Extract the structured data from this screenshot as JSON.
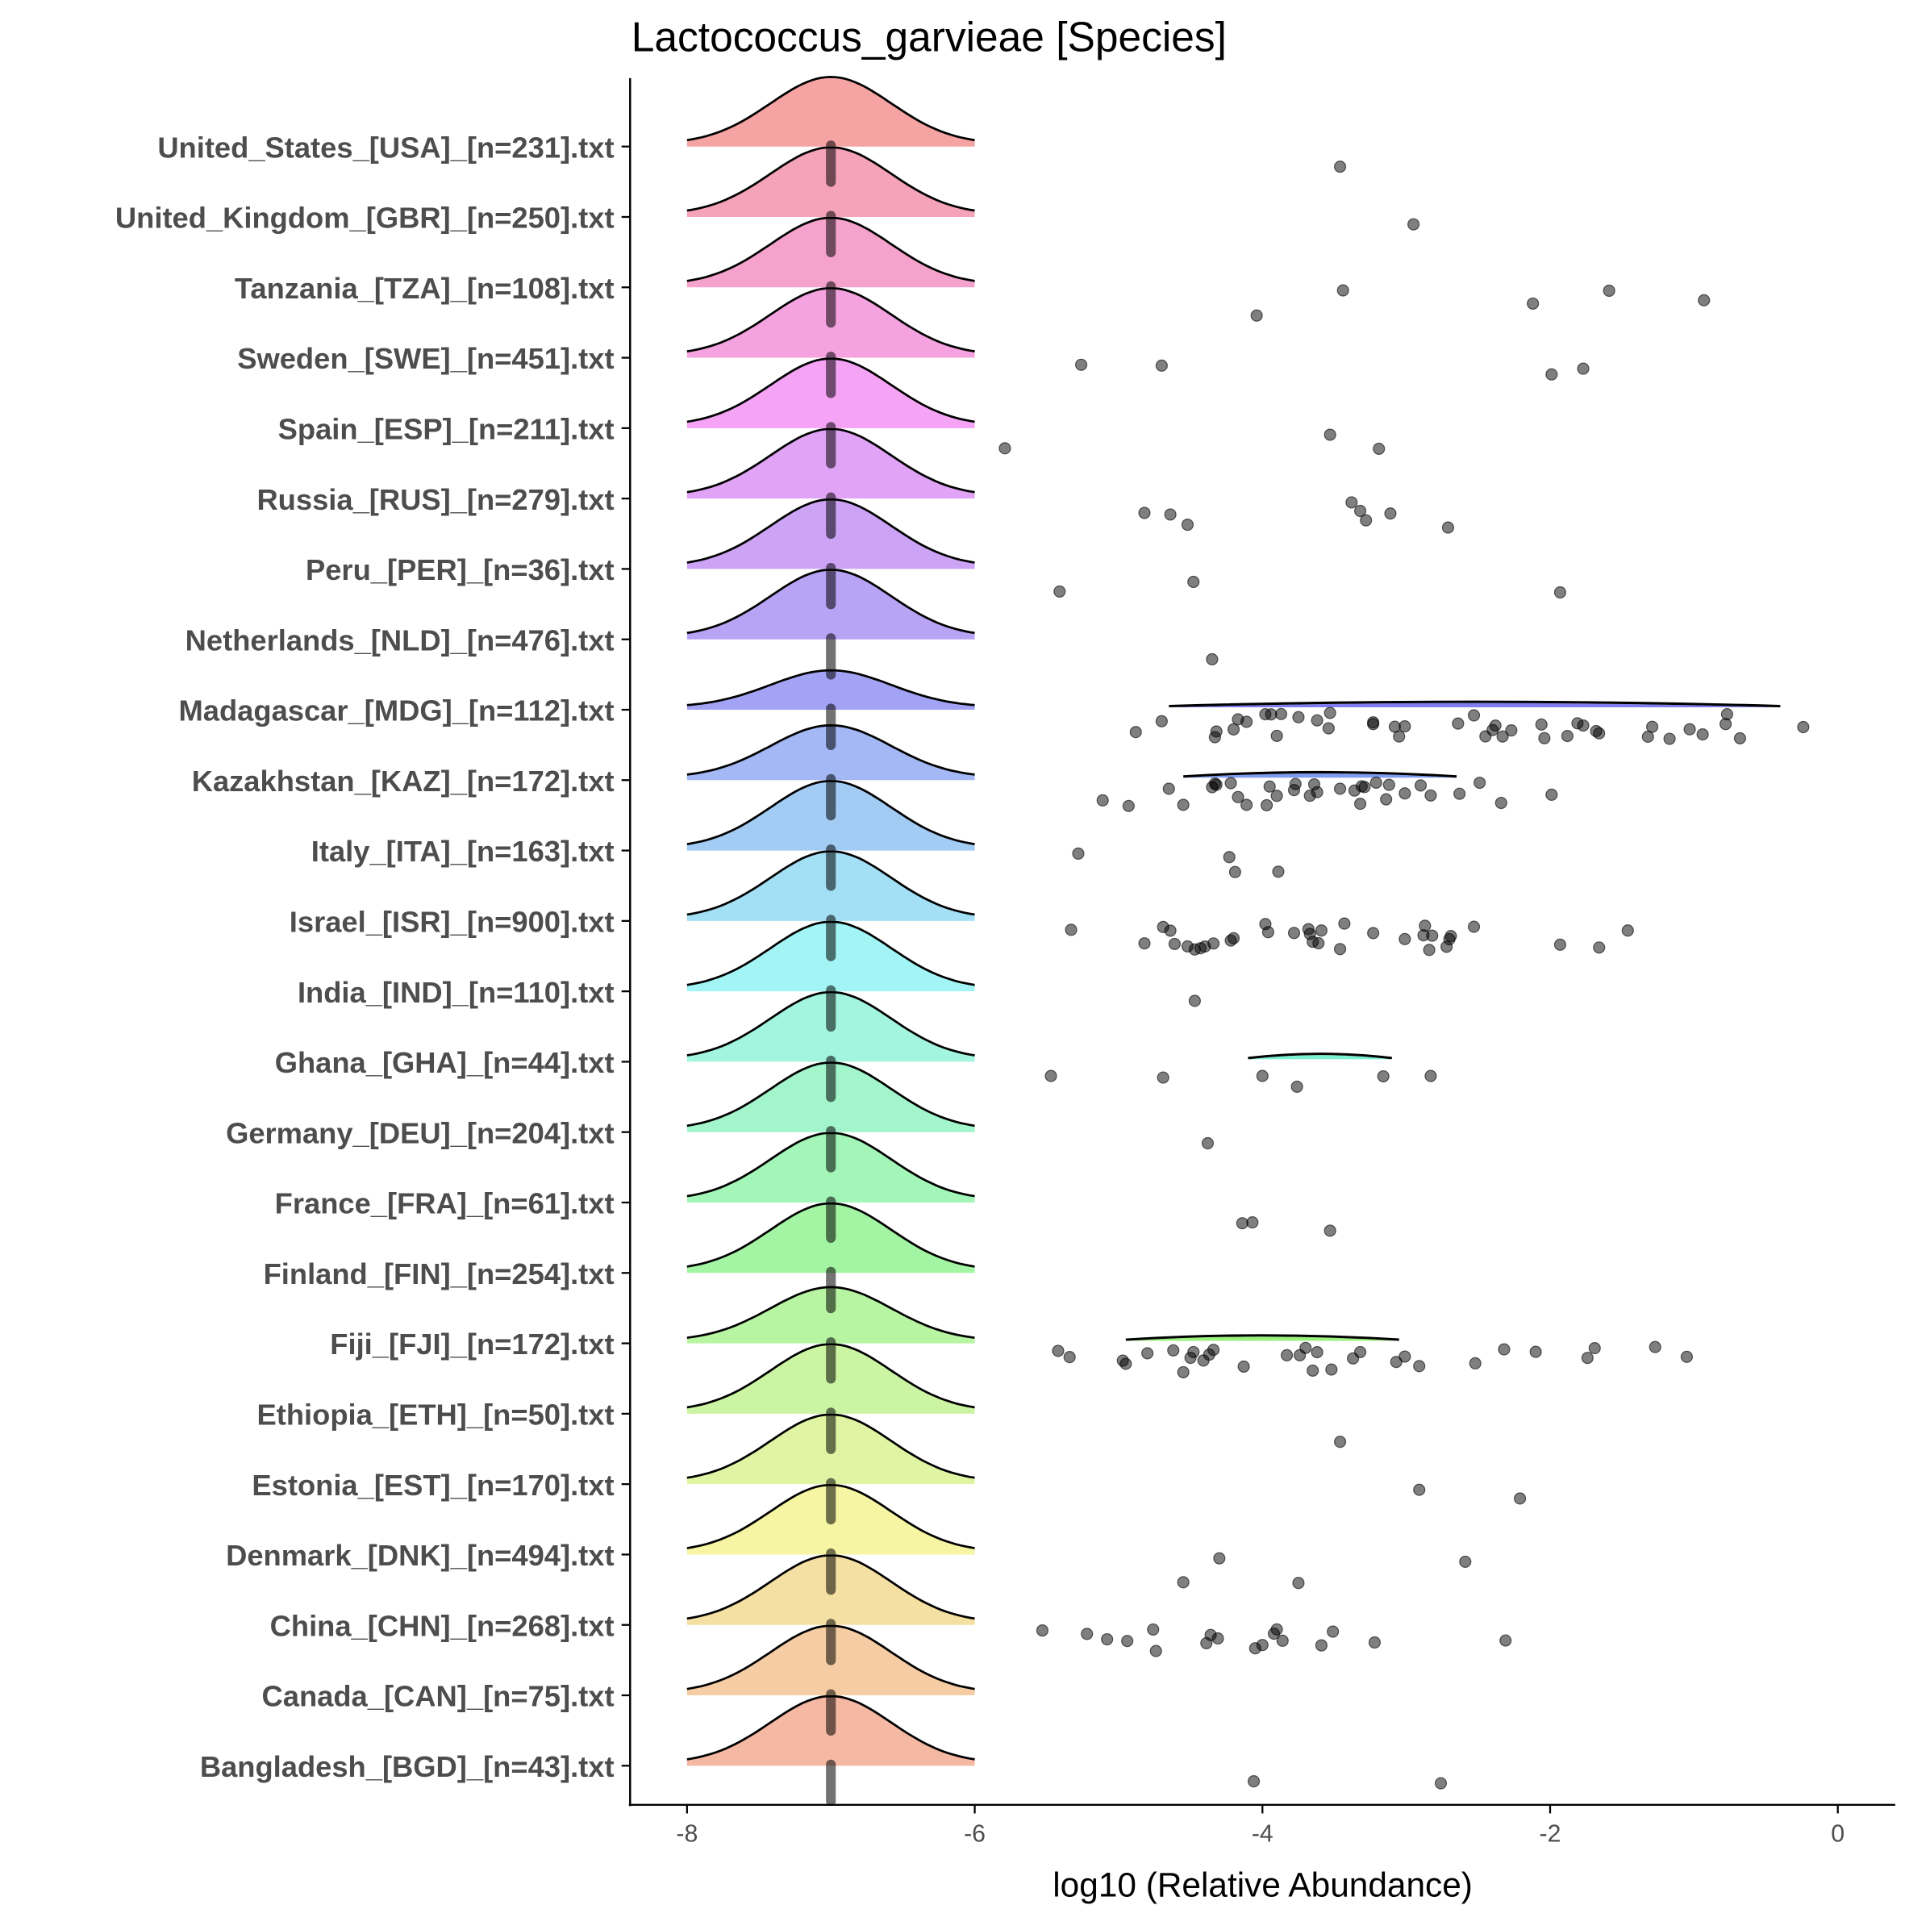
{
  "chart_data": {
    "type": "ridgeline",
    "title": "Lactococcus_garvieae [Species]",
    "xlabel": "log10 (Relative Abundance)",
    "ylabel": "",
    "xlim": [
      -8.4,
      0.4
    ],
    "xticks": [
      -8,
      -6,
      -4,
      -2,
      0
    ],
    "xtick_labels": [
      "-8",
      "-6",
      "-4",
      "-2",
      "0"
    ],
    "grid": false,
    "zero_value": -7,
    "point_color": "#000000",
    "rows": [
      {
        "label": "United_States_[USA]_[n=231].txt",
        "points": [
          -3.46
        ]
      },
      {
        "label": "United_Kingdom_[GBR]_[n=250].txt",
        "points": [
          -2.95
        ]
      },
      {
        "label": "Tanzania_[TZA]_[n=108].txt",
        "points": [
          -3.44,
          -4.04,
          -2.12,
          -1.59,
          -0.93
        ]
      },
      {
        "label": "Sweden_[SWE]_[n=451].txt",
        "points": [
          -5.26,
          -4.7,
          -1.99,
          -1.77
        ]
      },
      {
        "label": "Spain_[ESP]_[n=211].txt",
        "points": [
          -5.79,
          -3.53,
          -3.19
        ]
      },
      {
        "label": "Russia_[RUS]_[n=279].txt",
        "points": [
          -4.64,
          -4.82,
          -4.52,
          -3.28,
          -3.38,
          -3.32,
          -3.11,
          -2.71
        ]
      },
      {
        "label": "Peru_[PER]_[n=36].txt",
        "points": [
          -4.48,
          -5.41,
          -1.93
        ]
      },
      {
        "label": "Netherlands_[NLD]_[n=476].txt",
        "points": [
          -4.35
        ]
      },
      {
        "label": "Madagascar_[MDG]_[n=112].txt",
        "density_scale": 0.55,
        "secondary_range": [
          -4.65,
          -0.4
        ],
        "points": [
          -4.88,
          -4.7,
          -4.33,
          -4.32,
          -4.2,
          -4.17,
          -4.11,
          -3.98,
          -3.9,
          -3.94,
          -3.87,
          -3.75,
          -3.62,
          -3.53,
          -3.54,
          -3.23,
          -3.23,
          -3.08,
          -3.05,
          -3.01,
          -2.64,
          -2.53,
          -2.45,
          -2.4,
          -2.38,
          -2.33,
          -2.27,
          -2.06,
          -2.04,
          -1.88,
          -1.81,
          -1.77,
          -1.68,
          -1.66,
          -1.32,
          -1.29,
          -1.17,
          -1.03,
          -0.94,
          -0.78,
          -0.77,
          -0.68,
          -0.24
        ]
      },
      {
        "label": "Kazakhstan_[KAZ]_[n=172].txt",
        "density_scale": 0.78,
        "secondary_range": [
          -4.55,
          -2.65
        ],
        "points": [
          -5.11,
          -4.93,
          -4.65,
          -4.55,
          -4.35,
          -4.33,
          -4.32,
          -4.22,
          -4.17,
          -4.11,
          -3.97,
          -3.95,
          -3.9,
          -3.77,
          -3.78,
          -3.67,
          -3.64,
          -3.62,
          -3.46,
          -3.36,
          -3.32,
          -3.31,
          -3.29,
          -3.21,
          -3.14,
          -3.12,
          -3.01,
          -2.9,
          -2.83,
          -2.63,
          -2.49,
          -2.34,
          -1.99
        ]
      },
      {
        "label": "Italy_[ITA]_[n=163].txt",
        "points": [
          -5.28,
          -4.23,
          -4.19,
          -3.89
        ]
      },
      {
        "label": "Israel_[ISR]_[n=900].txt",
        "points": [
          -5.33,
          -4.82,
          -4.69,
          -4.64,
          -4.61,
          -4.52,
          -4.47,
          -4.43,
          -4.4,
          -4.34,
          -4.22,
          -4.2,
          -3.98,
          -3.96,
          -3.78,
          -3.68,
          -3.67,
          -3.65,
          -3.61,
          -3.59,
          -3.46,
          -3.43,
          -3.23,
          -3.01,
          -2.88,
          -2.87,
          -2.84,
          -2.82,
          -2.72,
          -2.7,
          -2.69,
          -2.53,
          -1.93,
          -1.66,
          -1.46
        ]
      },
      {
        "label": "India_[IND]_[n=110].txt",
        "points": [
          -4.47
        ]
      },
      {
        "label": "Ghana_[GHA]_[n=44].txt",
        "secondary_range": [
          -4.1,
          -3.1
        ],
        "points": [
          -5.47,
          -4.69,
          -4.0,
          -3.76,
          -3.16,
          -2.83
        ]
      },
      {
        "label": "Germany_[DEU]_[n=204].txt",
        "points": [
          -4.38
        ]
      },
      {
        "label": "France_[FRA]_[n=61].txt",
        "points": [
          -4.14,
          -4.07,
          -3.53
        ]
      },
      {
        "label": "Finland_[FIN]_[n=254].txt",
        "points": []
      },
      {
        "label": "Fiji_[FJI]_[n=172].txt",
        "density_scale": 0.8,
        "secondary_range": [
          -4.95,
          -3.05
        ],
        "points": [
          -5.42,
          -5.34,
          -4.97,
          -4.95,
          -4.8,
          -4.62,
          -4.55,
          -4.5,
          -4.48,
          -4.41,
          -4.37,
          -4.34,
          -4.13,
          -3.83,
          -3.74,
          -3.7,
          -3.65,
          -3.62,
          -3.52,
          -3.37,
          -3.32,
          -3.07,
          -3.01,
          -2.91,
          -2.52,
          -2.32,
          -2.1,
          -1.74,
          -1.69,
          -1.27,
          -1.05
        ]
      },
      {
        "label": "Ethiopia_[ETH]_[n=50].txt",
        "points": [
          -3.46
        ]
      },
      {
        "label": "Estonia_[EST]_[n=170].txt",
        "points": [
          -2.91,
          -2.21
        ]
      },
      {
        "label": "Denmark_[DNK]_[n=494].txt",
        "points": [
          -2.59,
          -4.3,
          -4.55,
          -3.75
        ]
      },
      {
        "label": "China_[CHN]_[n=268].txt",
        "points": [
          -5.53,
          -5.22,
          -5.08,
          -4.94,
          -4.76,
          -4.74,
          -4.39,
          -4.31,
          -4.36,
          -4.05,
          -4.0,
          -3.9,
          -3.86,
          -3.92,
          -3.59,
          -3.51,
          -3.22,
          -2.31
        ]
      },
      {
        "label": "Canada_[CAN]_[n=75].txt",
        "points": []
      },
      {
        "label": "Bangladesh_[BGD]_[n=43].txt",
        "points": [
          -4.06,
          -2.76
        ]
      }
    ]
  }
}
